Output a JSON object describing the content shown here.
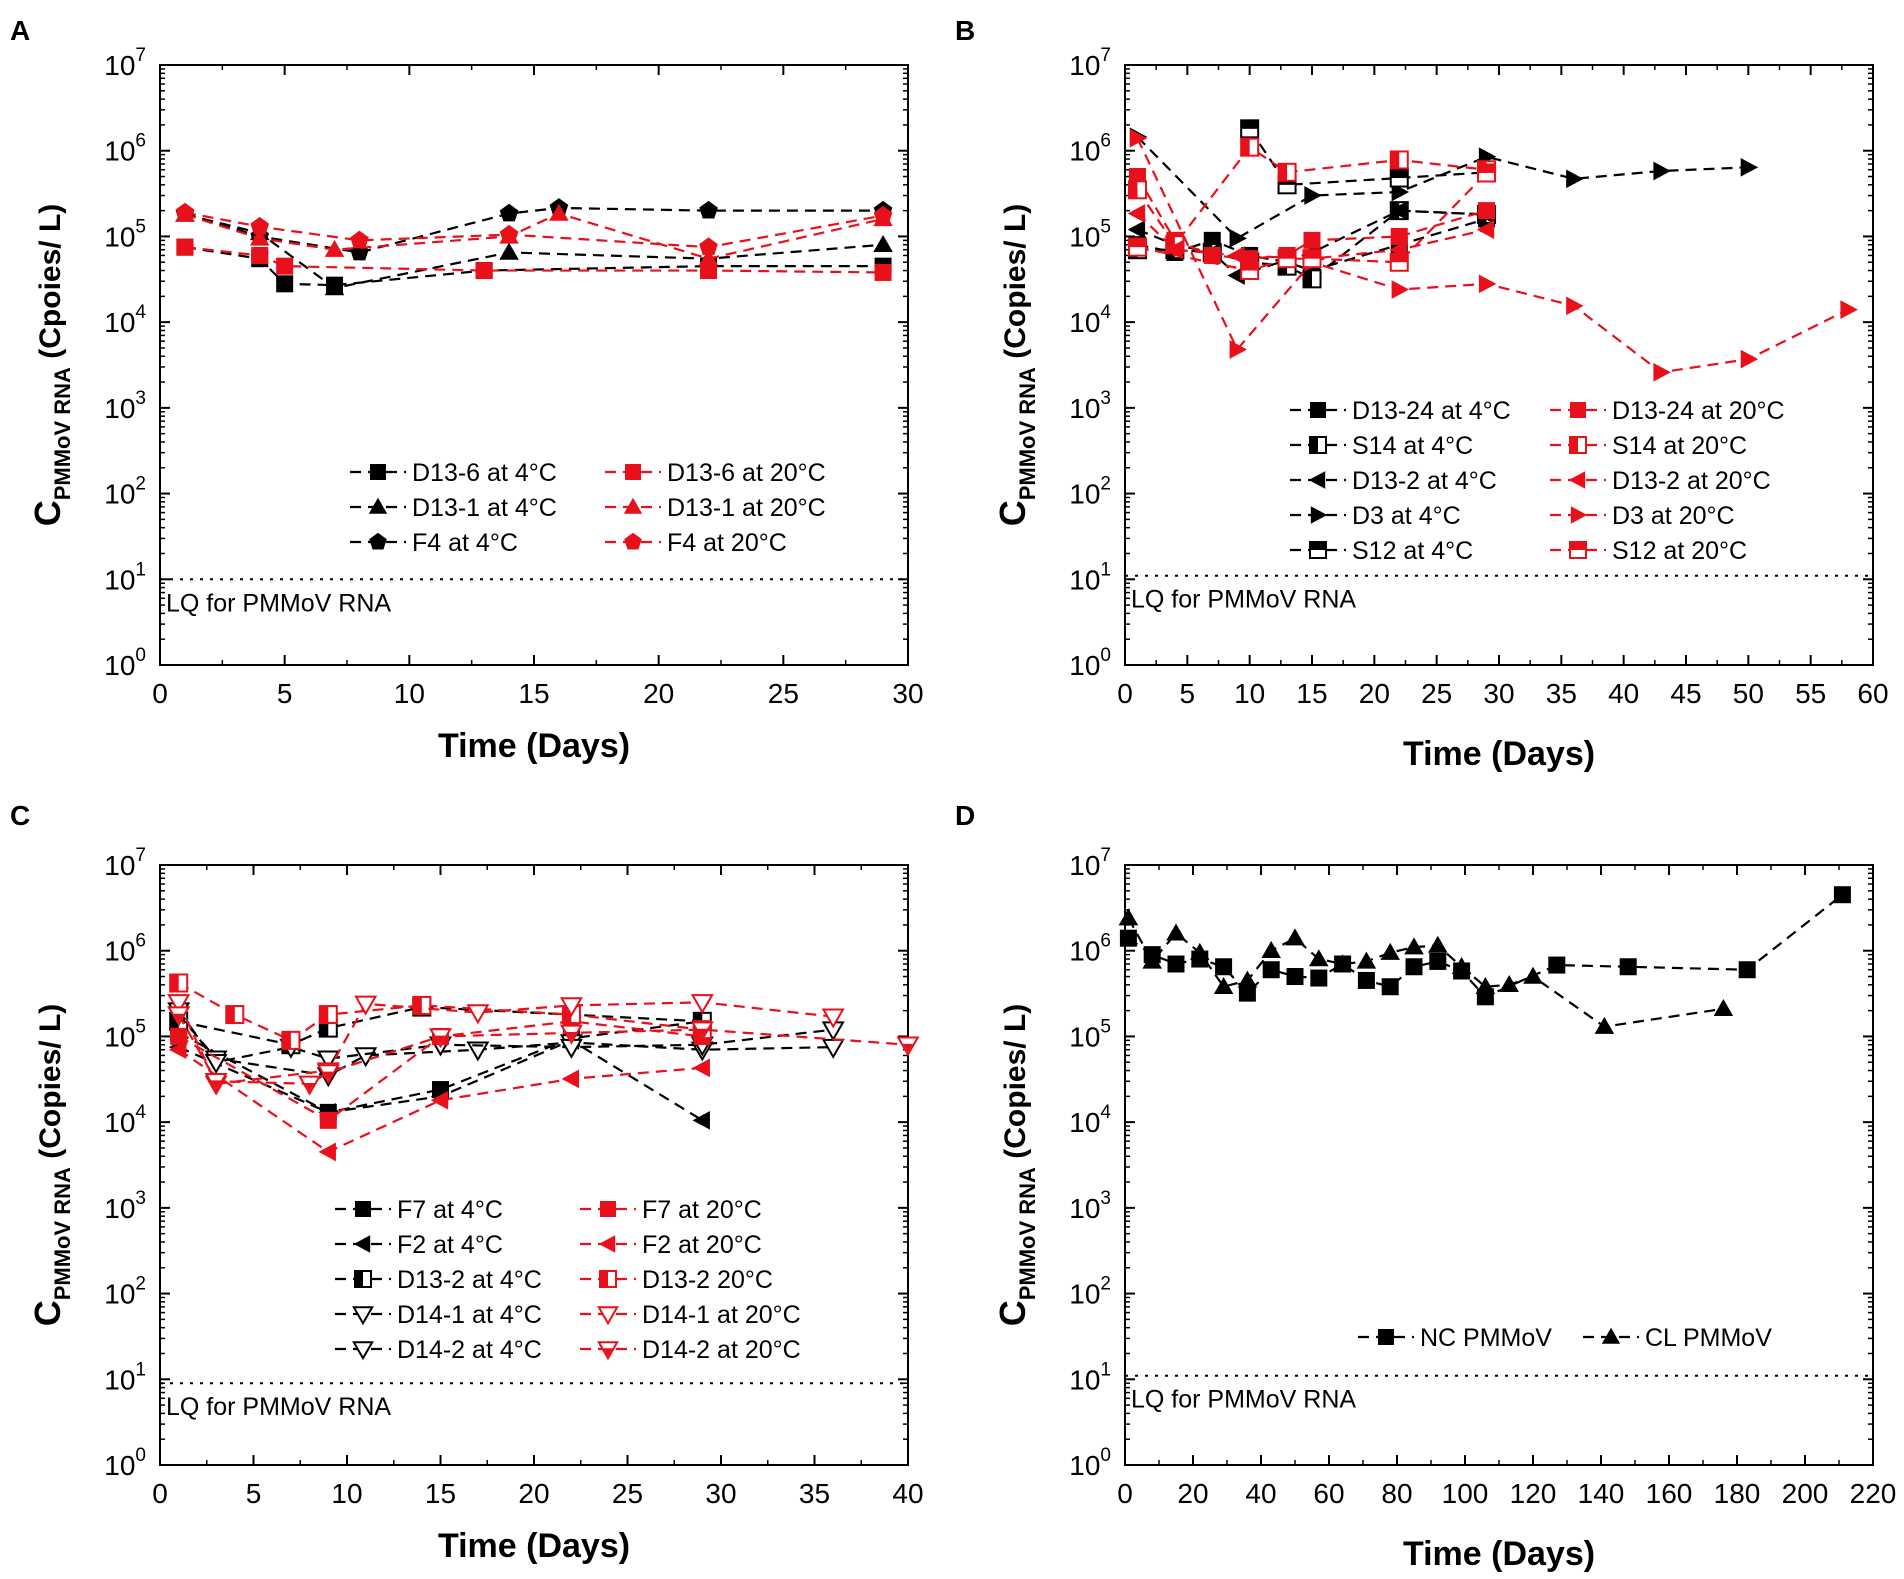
{
  "chart_data": [
    {
      "panel": "A",
      "type": "line",
      "yscale": "log",
      "xlabel": "Time (Days)",
      "ylabel": {
        "main": "C",
        "sub": "PMMoV RNA",
        "rest": " (Cpoies/ L)"
      },
      "xlim": [
        0,
        30
      ],
      "xticks": [
        0,
        5,
        10,
        15,
        20,
        25,
        30
      ],
      "ylim_exp": [
        0,
        7
      ],
      "lq": {
        "value": 10,
        "label": "LQ for PMMoV RNA"
      },
      "legend": {
        "columns": 2,
        "rows": 3
      },
      "series": [
        {
          "name": "D13-6 at 4°C",
          "color": "#000000",
          "marker": "square",
          "x": [
            1,
            4,
            5,
            7,
            13,
            22,
            29
          ],
          "y": [
            75000,
            55000,
            28000,
            27000,
            40000,
            45000,
            45000
          ]
        },
        {
          "name": "D13-1 at 4°C",
          "color": "#000000",
          "marker": "triangle",
          "x": [
            1,
            4,
            7,
            14,
            22,
            29
          ],
          "y": [
            180000,
            110000,
            25000,
            65000,
            55000,
            80000
          ]
        },
        {
          "name": "F4 at 4°C",
          "color": "#000000",
          "marker": "pentagon",
          "x": [
            1,
            4,
            8,
            14,
            16,
            22,
            29
          ],
          "y": [
            185000,
            100000,
            65000,
            185000,
            215000,
            200000,
            200000
          ]
        },
        {
          "name": "D13-6 at 20°C",
          "color": "#e8101a",
          "marker": "square",
          "x": [
            1,
            4,
            5,
            13,
            22,
            29
          ],
          "y": [
            75000,
            60000,
            45000,
            40000,
            40000,
            38000
          ]
        },
        {
          "name": "D13-1 at 20°C",
          "color": "#e8101a",
          "marker": "triangle",
          "x": [
            1,
            4,
            7,
            14,
            16,
            22,
            29
          ],
          "y": [
            180000,
            95000,
            70000,
            100000,
            185000,
            55000,
            160000
          ]
        },
        {
          "name": "F4 at 20°C",
          "color": "#e8101a",
          "marker": "pentagon",
          "x": [
            1,
            4,
            8,
            14,
            22,
            29
          ],
          "y": [
            190000,
            130000,
            90000,
            105000,
            75000,
            175000
          ]
        }
      ]
    },
    {
      "panel": "B",
      "type": "line",
      "yscale": "log",
      "xlabel": "Time (Days)",
      "ylabel": {
        "main": "C",
        "sub": "PMMoV RNA",
        "rest": " (Copies/ L)"
      },
      "xlim": [
        0,
        60
      ],
      "xticks": [
        0,
        5,
        10,
        15,
        20,
        25,
        30,
        35,
        40,
        45,
        50,
        55,
        60
      ],
      "ylim_exp": [
        0,
        7
      ],
      "lq": {
        "value": 11,
        "label": "LQ for PMMoV RNA"
      },
      "legend": {
        "columns": 2,
        "rows": 5
      },
      "series": [
        {
          "name": "D13-24 at 4°C",
          "color": "#000000",
          "marker": "square",
          "x": [
            1,
            4,
            7,
            10,
            13,
            15,
            22,
            29
          ],
          "y": [
            80000,
            65000,
            90000,
            60000,
            50000,
            40000,
            80000,
            160000
          ]
        },
        {
          "name": "S14 at 4°C",
          "color": "#000000",
          "marker": "half-left",
          "x": [
            1,
            4,
            7,
            10,
            13,
            15,
            22,
            29
          ],
          "y": [
            70000,
            70000,
            65000,
            50000,
            45000,
            32000,
            200000,
            180000
          ]
        },
        {
          "name": "D13-2 at 4°C",
          "color": "#000000",
          "marker": "tri-left",
          "x": [
            1,
            4,
            7,
            9,
            15,
            22,
            29
          ],
          "y": [
            120000,
            80000,
            65000,
            35000,
            65000,
            200000,
            180000
          ]
        },
        {
          "name": "D3  at 4°C",
          "color": "#000000",
          "marker": "tri-right",
          "x": [
            1,
            9,
            15,
            22,
            29,
            36,
            43,
            50
          ],
          "y": [
            1450000,
            95000,
            300000,
            330000,
            850000,
            470000,
            580000,
            640000
          ]
        },
        {
          "name": "S12 at 4°C",
          "color": "#000000",
          "marker": "half-top",
          "x": [
            10,
            13,
            22,
            29
          ],
          "y": [
            1800000,
            400000,
            480000,
            560000
          ]
        },
        {
          "name": "D13-24 at 20°C",
          "color": "#e8101a",
          "marker": "square",
          "x": [
            1,
            4,
            7,
            10,
            13,
            15,
            22,
            29
          ],
          "y": [
            500000,
            90000,
            60000,
            55000,
            60000,
            90000,
            100000,
            200000
          ]
        },
        {
          "name": "S14 at 20°C",
          "color": "#e8101a",
          "marker": "half-left",
          "x": [
            1,
            4,
            10,
            13,
            22,
            29
          ],
          "y": [
            350000,
            80000,
            1100000,
            560000,
            780000,
            600000
          ]
        },
        {
          "name": "D13-2 at 20°C",
          "color": "#e8101a",
          "marker": "tri-left",
          "x": [
            1,
            4,
            9,
            15,
            22,
            29
          ],
          "y": [
            185000,
            70000,
            60000,
            55000,
            70000,
            120000
          ]
        },
        {
          "name": "D3 at 20°C",
          "color": "#e8101a",
          "marker": "tri-right",
          "x": [
            1,
            9,
            15,
            22,
            29,
            36,
            43,
            50,
            58
          ],
          "y": [
            1400000,
            4800,
            50000,
            24000,
            28000,
            15500,
            2600,
            3700,
            14000
          ]
        },
        {
          "name": "S12 at 20°C",
          "color": "#e8101a",
          "marker": "half-top",
          "x": [
            1,
            10,
            13,
            15,
            22,
            29
          ],
          "y": [
            75000,
            40000,
            55000,
            55000,
            50000,
            550000
          ]
        }
      ]
    },
    {
      "panel": "C",
      "type": "line",
      "yscale": "log",
      "xlabel": "Time (Days)",
      "ylabel": {
        "main": "C",
        "sub": "PMMoV RNA",
        "rest": " (Copies/ L)"
      },
      "xlim": [
        0,
        40
      ],
      "xticks": [
        0,
        5,
        10,
        15,
        20,
        25,
        30,
        35,
        40
      ],
      "ylim_exp": [
        0,
        7
      ],
      "lq": {
        "value": 9,
        "label": "LQ for PMMoV RNA"
      },
      "legend": {
        "columns": 2,
        "rows": 5
      },
      "series": [
        {
          "name": "F7 at 4°C",
          "color": "#000000",
          "marker": "square",
          "x": [
            1,
            9,
            15,
            22,
            29
          ],
          "y": [
            110000,
            13000,
            24000,
            95000,
            150000
          ]
        },
        {
          "name": "F2 at 4°C",
          "color": "#000000",
          "marker": "tri-left",
          "x": [
            1,
            9,
            15,
            22,
            29
          ],
          "y": [
            75000,
            13000,
            20000,
            90000,
            10500
          ]
        },
        {
          "name": "D13-2 at 4°C",
          "color": "#000000",
          "marker": "half-left",
          "x": [
            1,
            7,
            9,
            14,
            29
          ],
          "y": [
            150000,
            80000,
            125000,
            220000,
            150000
          ]
        },
        {
          "name": "D14-1 at 4°C",
          "color": "#000000",
          "marker": "tri-down-open",
          "x": [
            1,
            3,
            9,
            11,
            17,
            22,
            29,
            36
          ],
          "y": [
            180000,
            55000,
            35000,
            60000,
            70000,
            85000,
            70000,
            75000
          ]
        },
        {
          "name": "D14-2 at 4°C",
          "color": "#000000",
          "marker": "tri-down-open",
          "x": [
            1,
            3,
            7,
            9,
            15,
            22,
            29,
            36
          ],
          "y": [
            200000,
            50000,
            75000,
            55000,
            80000,
            75000,
            80000,
            120000
          ]
        },
        {
          "name": "F7 at 20°C",
          "color": "#e8101a",
          "marker": "square",
          "x": [
            1,
            9,
            15,
            22,
            29
          ],
          "y": [
            100000,
            10500,
            100000,
            150000,
            100000
          ]
        },
        {
          "name": "F2 at 20°C",
          "color": "#e8101a",
          "marker": "tri-left",
          "x": [
            1,
            9,
            15,
            22,
            29
          ],
          "y": [
            70000,
            4500,
            18000,
            32000,
            43000
          ]
        },
        {
          "name": "D13-2 20°C",
          "color": "#e8101a",
          "marker": "half-left",
          "x": [
            1,
            4,
            7,
            9,
            14,
            22,
            29
          ],
          "y": [
            420000,
            180000,
            90000,
            180000,
            230000,
            180000,
            120000
          ]
        },
        {
          "name": "D14-1 at 20°C",
          "color": "#e8101a",
          "marker": "tri-down-open",
          "x": [
            1,
            3,
            9,
            11,
            17,
            22,
            29,
            36
          ],
          "y": [
            250000,
            28000,
            40000,
            240000,
            190000,
            230000,
            250000,
            170000
          ]
        },
        {
          "name": "D14-2 at 20°C",
          "color": "#e8101a",
          "marker": "tri-down-filled",
          "x": [
            1,
            3,
            8,
            9,
            15,
            22,
            29,
            40
          ],
          "y": [
            180000,
            30000,
            28000,
            38000,
            100000,
            110000,
            120000,
            80000
          ]
        }
      ]
    },
    {
      "panel": "D",
      "type": "line",
      "yscale": "log",
      "xlabel": "Time (Days)",
      "ylabel": {
        "main": "C",
        "sub": "PMMoV RNA",
        "rest": " (Copies/ L)"
      },
      "xlim": [
        0,
        220
      ],
      "xticks": [
        0,
        20,
        40,
        60,
        80,
        100,
        120,
        140,
        160,
        180,
        200,
        220
      ],
      "ylim_exp": [
        0,
        7
      ],
      "lq": {
        "value": 11,
        "label": "LQ for PMMoV RNA"
      },
      "legend": {
        "columns": 2,
        "rows": 1
      },
      "series": [
        {
          "name": "NC PMMoV",
          "color": "#000000",
          "marker": "square",
          "x": [
            1,
            8,
            15,
            22,
            29,
            36,
            43,
            50,
            57,
            64,
            71,
            78,
            85,
            92,
            99,
            106,
            127,
            148,
            183,
            211
          ],
          "y": [
            1400000,
            900000,
            700000,
            800000,
            650000,
            320000,
            600000,
            500000,
            480000,
            700000,
            450000,
            380000,
            650000,
            750000,
            580000,
            290000,
            680000,
            650000,
            600000,
            4500000
          ]
        },
        {
          "name": "CL PMMoV",
          "color": "#000000",
          "marker": "triangle",
          "x": [
            1,
            8,
            15,
            22,
            29,
            36,
            43,
            50,
            57,
            64,
            71,
            78,
            85,
            92,
            99,
            106,
            113,
            120,
            141,
            176
          ],
          "y": [
            2400000,
            750000,
            1600000,
            950000,
            380000,
            450000,
            1000000,
            1400000,
            800000,
            700000,
            750000,
            950000,
            1100000,
            1150000,
            650000,
            380000,
            400000,
            500000,
            130000,
            210000
          ]
        }
      ]
    }
  ]
}
